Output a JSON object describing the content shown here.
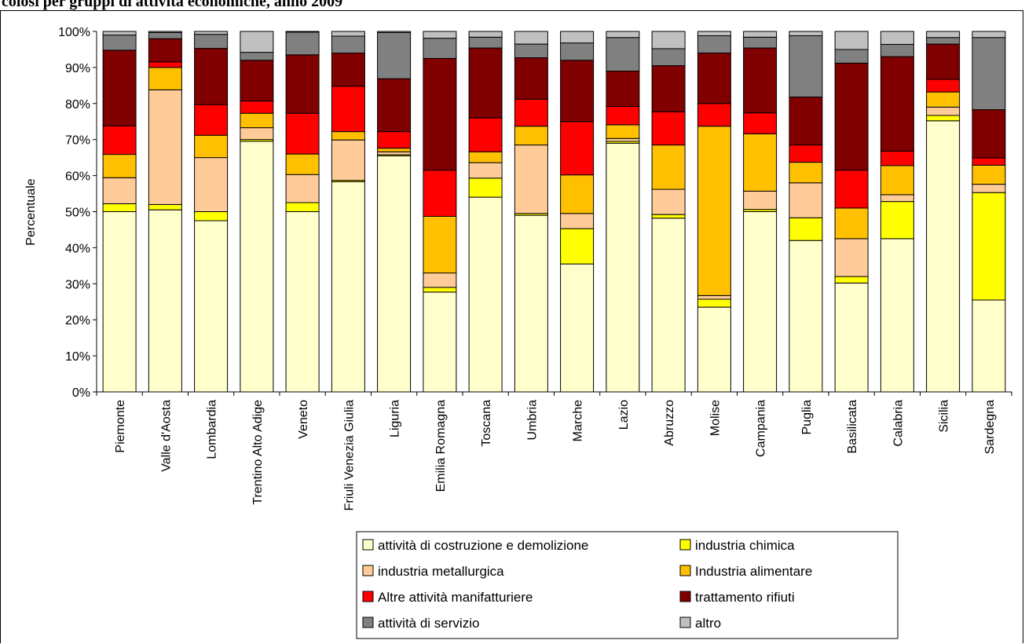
{
  "title": "colosi per gruppi di attività economiche, anno 2009",
  "chart_data": {
    "type": "bar",
    "stacked": true,
    "percent": true,
    "ylabel": "Percentuale",
    "xlabel": "",
    "ylim": [
      0,
      100
    ],
    "yticks": [
      "0%",
      "10%",
      "20%",
      "30%",
      "40%",
      "50%",
      "60%",
      "70%",
      "80%",
      "90%",
      "100%"
    ],
    "grid": false,
    "legend_position": "bottom-right",
    "categories": [
      "Piemonte",
      "Valle d'Aosta",
      "Lombardia",
      "Trentino Alto Adige",
      "Veneto",
      "Friuli Venezia Giulia",
      "Liguria",
      "Emilia Romagna",
      "Toscana",
      "Umbria",
      "Marche",
      "Lazio",
      "Abruzzo",
      "Molise",
      "Campania",
      "Puglia",
      "Basilicata",
      "Calabria",
      "Sicilia",
      "Sardegna"
    ],
    "series": [
      {
        "name": "attività di costruzione e demolizione",
        "color": "#FFFFCC",
        "values": [
          50,
          50.5,
          47.5,
          69.5,
          50,
          58.3,
          65.5,
          27.7,
          54,
          49,
          35.5,
          69,
          48.2,
          23.5,
          50,
          42,
          30.2,
          42.5,
          75.2,
          25.5
        ]
      },
      {
        "name": "industria chimica",
        "color": "#FFFF00",
        "values": [
          2.2,
          1.5,
          2.5,
          0.5,
          2.5,
          0.4,
          0.3,
          1.3,
          5.3,
          0.5,
          9.8,
          0.5,
          1,
          2.2,
          0.6,
          6.3,
          1.8,
          10.3,
          1.5,
          29.8
        ]
      },
      {
        "name": "industria metallurgica",
        "color": "#FFCC99",
        "values": [
          7.2,
          31.8,
          15,
          3.3,
          7.8,
          11.2,
          0.8,
          4,
          4.3,
          19,
          4.2,
          0.8,
          7,
          1,
          5.1,
          9.7,
          10.5,
          1.9,
          2.3,
          2.3
        ]
      },
      {
        "name": "Industria alimentare",
        "color": "#FFC000",
        "values": [
          6.5,
          6.2,
          6.2,
          4,
          5.7,
          2.3,
          1,
          15.7,
          3,
          5.2,
          10.7,
          3.8,
          12.3,
          47,
          15.9,
          5.7,
          8.5,
          8.1,
          4.2,
          5.3
        ]
      },
      {
        "name": "Altre attività manifatturiere",
        "color": "#FF0000",
        "values": [
          7.9,
          1.5,
          8.5,
          3.4,
          11.3,
          12.6,
          4.6,
          12.8,
          9.4,
          7.5,
          14.8,
          5.1,
          9.2,
          6.3,
          5.8,
          4.8,
          10.5,
          4,
          3.5,
          2
        ]
      },
      {
        "name": "trattamento rifiuti",
        "color": "#800000",
        "values": [
          21,
          6.5,
          15.6,
          11.3,
          16.2,
          9.2,
          14.7,
          31,
          19.4,
          11.5,
          17,
          9.8,
          12.8,
          14,
          18,
          13.3,
          29.7,
          26.2,
          9.8,
          13.4
        ]
      },
      {
        "name": "attività di servizio",
        "color": "#808080",
        "values": [
          4.2,
          1.7,
          3.9,
          2.2,
          6.3,
          4.7,
          12.8,
          5.6,
          3,
          3.8,
          4.8,
          9.3,
          4.7,
          4.8,
          3,
          17,
          3.8,
          3.4,
          1.8,
          20
        ]
      },
      {
        "name": "altro",
        "color": "#C0C0C0",
        "values": [
          1,
          0.3,
          0.8,
          5.8,
          0.2,
          1.3,
          0.3,
          1.9,
          1.6,
          3.5,
          3.2,
          1.7,
          4.8,
          1.2,
          1.6,
          1.2,
          5,
          3.6,
          1.7,
          1.7
        ]
      }
    ]
  }
}
